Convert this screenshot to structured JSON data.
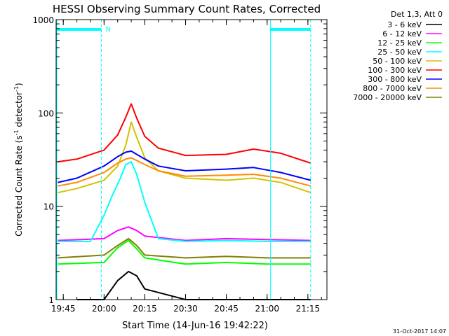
{
  "chart_data": {
    "type": "line",
    "title": "HESSI Observing Summary Count Rates, Corrected",
    "xlabel": "Start Time (14-Jun-16 19:42:22)",
    "ylabel_main": "Corrected Count Rate (s",
    "ylabel_sup1": "-1",
    "ylabel_mid": " detector",
    "ylabel_sup2": "-1",
    "ylabel_end": ")",
    "yscale": "log",
    "ylim": [
      1,
      1000
    ],
    "xlim": [
      "19:42:22",
      "21:22"
    ],
    "x_ticks": [
      "19:45",
      "20:00",
      "20:15",
      "20:30",
      "20:45",
      "21:00",
      "21:15"
    ],
    "y_ticks": [
      {
        "label": "1",
        "value": 1
      },
      {
        "label": "10",
        "value": 10
      },
      {
        "label": "100",
        "value": 100
      },
      {
        "label": "1000",
        "value": 1000
      }
    ],
    "legend_title": "Det 1,3, Att 0",
    "legend_position": "top-right, outside plot",
    "markers": {
      "night_label": "N",
      "night_segments": [
        {
          "start": "19:42:22",
          "end": "19:59:00"
        },
        {
          "start": "21:01:00",
          "end": "21:16:00"
        }
      ],
      "dashed_lines": [
        "19:59:00",
        "21:16:00"
      ],
      "solid_lines": [
        "19:42:22",
        "21:01:00"
      ]
    },
    "series": [
      {
        "name": "3 - 6 keV",
        "color": "#000000",
        "x": [
          "19:50",
          "20:00",
          "20:05",
          "20:09",
          "20:12",
          "20:15",
          "20:30",
          "21:00",
          "21:16"
        ],
        "y": [
          1,
          1,
          1.6,
          2.0,
          1.8,
          1.3,
          1,
          1,
          1
        ]
      },
      {
        "name": "6 - 12 keV",
        "color": "#ff00ff",
        "x": [
          "19:43",
          "20:00",
          "20:05",
          "20:09",
          "20:12",
          "20:15",
          "20:30",
          "20:45",
          "21:00",
          "21:16"
        ],
        "y": [
          4.3,
          4.5,
          5.5,
          6.0,
          5.5,
          4.8,
          4.3,
          4.5,
          4.4,
          4.3
        ]
      },
      {
        "name": "12 - 25 keV",
        "color": "#00ff00",
        "x": [
          "19:43",
          "20:00",
          "20:05",
          "20:09",
          "20:12",
          "20:15",
          "20:30",
          "20:45",
          "21:00",
          "21:16"
        ],
        "y": [
          2.4,
          2.5,
          3.6,
          4.3,
          3.5,
          2.8,
          2.4,
          2.5,
          2.4,
          2.4
        ]
      },
      {
        "name": "25 - 50 keV",
        "color": "#00ffff",
        "x": [
          "19:43",
          "19:55",
          "20:00",
          "20:03",
          "20:06",
          "20:08",
          "20:10",
          "20:12",
          "20:15",
          "20:20",
          "20:30",
          "20:45",
          "21:00",
          "21:16"
        ],
        "y": [
          4.2,
          4.2,
          8.0,
          13,
          20,
          28,
          30,
          22,
          11,
          4.5,
          4.2,
          4.3,
          4.2,
          4.2
        ]
      },
      {
        "name": "50 - 100 keV",
        "color": "#d4c200",
        "x": [
          "19:43",
          "19:50",
          "20:00",
          "20:05",
          "20:08",
          "20:10",
          "20:12",
          "20:15",
          "20:20",
          "20:30",
          "20:45",
          "20:55",
          "21:05",
          "21:16"
        ],
        "y": [
          14,
          15.5,
          19,
          27,
          45,
          80,
          55,
          33,
          24,
          20,
          19,
          20,
          18,
          14
        ]
      },
      {
        "name": "100 - 300 keV",
        "color": "#ff0000",
        "x": [
          "19:43",
          "19:50",
          "20:00",
          "20:05",
          "20:08",
          "20:10",
          "20:12",
          "20:15",
          "20:20",
          "20:30",
          "20:45",
          "20:55",
          "21:05",
          "21:16"
        ],
        "y": [
          30,
          32,
          40,
          58,
          90,
          125,
          88,
          56,
          42,
          35,
          36,
          41,
          37,
          29
        ]
      },
      {
        "name": "300 - 800 keV",
        "color": "#0000ff",
        "x": [
          "19:43",
          "19:50",
          "20:00",
          "20:05",
          "20:08",
          "20:10",
          "20:12",
          "20:15",
          "20:20",
          "20:30",
          "20:45",
          "20:55",
          "21:05",
          "21:16"
        ],
        "y": [
          18,
          20,
          27,
          34,
          38,
          39,
          36,
          32,
          27,
          24,
          25,
          26,
          23,
          19
        ]
      },
      {
        "name": "800 - 7000 keV",
        "color": "#ff8c00",
        "x": [
          "19:43",
          "19:50",
          "20:00",
          "20:05",
          "20:08",
          "20:10",
          "20:12",
          "20:15",
          "20:20",
          "20:30",
          "20:45",
          "20:55",
          "21:05",
          "21:16"
        ],
        "y": [
          16.5,
          18,
          23,
          29,
          32,
          33,
          31,
          28,
          24,
          21,
          21.5,
          22,
          20,
          16.5
        ]
      },
      {
        "name": "7000 - 20000 keV",
        "color": "#808000",
        "x": [
          "19:43",
          "20:00",
          "20:05",
          "20:09",
          "20:12",
          "20:15",
          "20:30",
          "20:45",
          "21:00",
          "21:16"
        ],
        "y": [
          2.8,
          3.0,
          3.8,
          4.5,
          3.8,
          3.0,
          2.8,
          2.9,
          2.8,
          2.8
        ]
      }
    ],
    "footer_timestamp": "31-Oct-2017 14:07"
  }
}
